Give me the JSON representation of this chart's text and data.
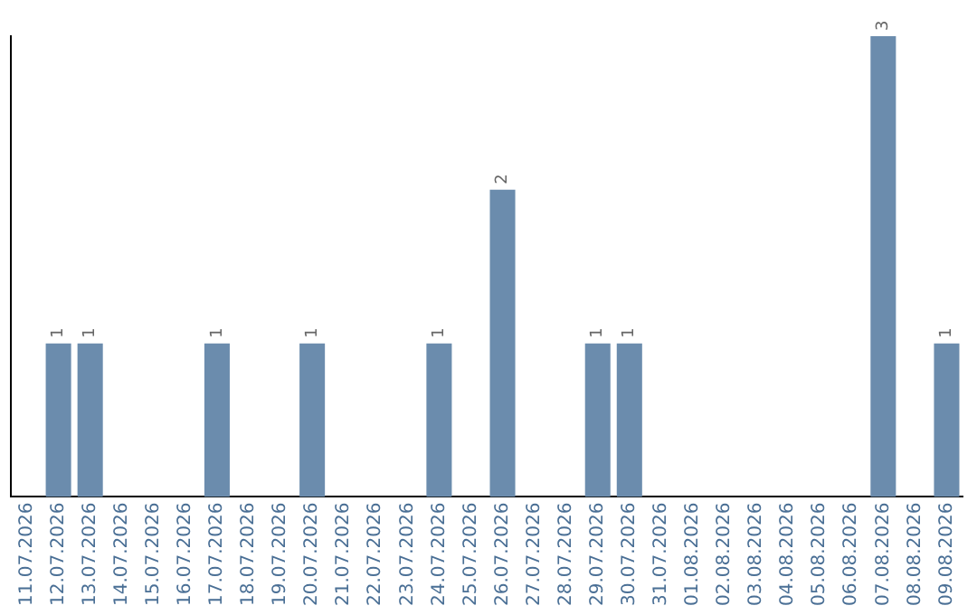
{
  "chart_data": {
    "type": "bar",
    "categories": [
      "11.07.2026",
      "12.07.2026",
      "13.07.2026",
      "14.07.2026",
      "15.07.2026",
      "16.07.2026",
      "17.07.2026",
      "18.07.2026",
      "19.07.2026",
      "20.07.2026",
      "21.07.2026",
      "22.07.2026",
      "23.07.2026",
      "24.07.2026",
      "25.07.2026",
      "26.07.2026",
      "27.07.2026",
      "28.07.2026",
      "29.07.2026",
      "30.07.2026",
      "31.07.2026",
      "01.08.2026",
      "02.08.2026",
      "03.08.2026",
      "04.08.2026",
      "05.08.2026",
      "06.08.2026",
      "07.08.2026",
      "08.08.2026",
      "09.08.2026"
    ],
    "values": [
      0,
      1,
      1,
      0,
      0,
      0,
      1,
      0,
      0,
      1,
      0,
      0,
      0,
      1,
      0,
      2,
      0,
      0,
      1,
      1,
      0,
      0,
      0,
      0,
      0,
      0,
      0,
      3,
      0,
      1
    ],
    "value_labels": [
      null,
      "1",
      "1",
      null,
      null,
      null,
      "1",
      null,
      null,
      "1",
      null,
      null,
      null,
      "1",
      null,
      "2",
      null,
      null,
      "1",
      "1",
      null,
      null,
      null,
      null,
      null,
      null,
      null,
      "3",
      null,
      "1"
    ],
    "color": "#6b8cad",
    "grid": false,
    "legend": false,
    "tick_labels": "x"
  }
}
